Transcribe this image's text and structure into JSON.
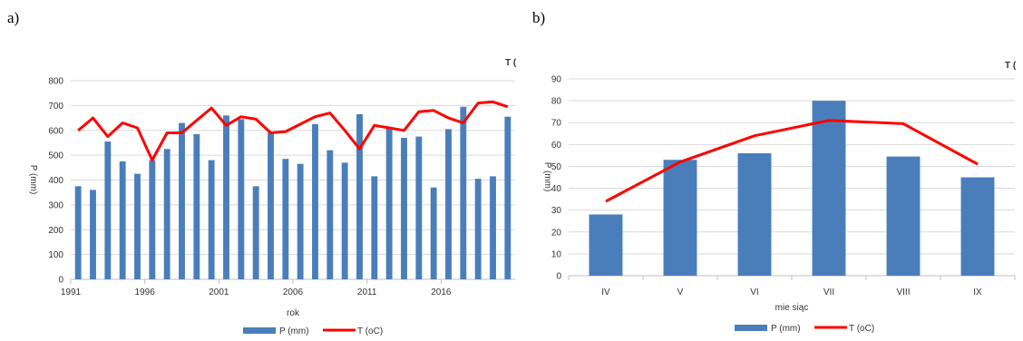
{
  "panels": {
    "a_label": "a)",
    "b_label": "b)"
  },
  "colors": {
    "bar": "#4a7ebb",
    "line": "#ff0000",
    "grid": "#d9d9d9",
    "axis": "#bfbfbf"
  },
  "chart_data": [
    {
      "type": "bar",
      "title": "",
      "xlabel": "rok",
      "ylabel": "P (mm)",
      "right_axis_label": "T (",
      "ylim": [
        0,
        800
      ],
      "yticks": [
        0,
        100,
        200,
        300,
        400,
        500,
        600,
        700,
        800
      ],
      "x_tick_labels": [
        "1991",
        "1996",
        "2001",
        "2006",
        "2011",
        "2016"
      ],
      "x_tick_positions": [
        1991,
        1996,
        2001,
        2006,
        2011,
        2016
      ],
      "categories": [
        1991,
        1992,
        1993,
        1994,
        1995,
        1996,
        1997,
        1998,
        1999,
        2000,
        2001,
        2002,
        2003,
        2004,
        2005,
        2006,
        2007,
        2008,
        2009,
        2010,
        2011,
        2012,
        2013,
        2014,
        2015,
        2016,
        2017,
        2018,
        2019,
        2020
      ],
      "legend": [
        "P (mm)",
        "T (oC)"
      ],
      "grid": true,
      "legend_position": "bottom",
      "series": [
        {
          "name": "P (mm)",
          "kind": "bar",
          "values": [
            375,
            360,
            555,
            475,
            425,
            480,
            525,
            630,
            585,
            480,
            660,
            645,
            375,
            590,
            485,
            465,
            625,
            520,
            470,
            665,
            415,
            610,
            570,
            575,
            370,
            605,
            695,
            405,
            415,
            655
          ]
        },
        {
          "name": "T (oC)",
          "kind": "line",
          "values": [
            600,
            650,
            575,
            630,
            610,
            480,
            590,
            590,
            640,
            690,
            620,
            655,
            645,
            590,
            595,
            625,
            655,
            670,
            600,
            525,
            620,
            610,
            600,
            675,
            680,
            650,
            630,
            710,
            715,
            695
          ]
        }
      ]
    },
    {
      "type": "bar",
      "title": "",
      "xlabel": "mie siąc",
      "ylabel": "P (mm)",
      "right_axis_label": "T (",
      "ylim": [
        0,
        90
      ],
      "yticks": [
        0,
        10,
        20,
        30,
        40,
        50,
        60,
        70,
        80,
        90
      ],
      "categories": [
        "IV",
        "V",
        "VI",
        "VII",
        "VIII",
        "IX"
      ],
      "legend": [
        "P (mm)",
        "T (oC)"
      ],
      "grid": true,
      "legend_position": "bottom",
      "series": [
        {
          "name": "P (mm)",
          "kind": "bar",
          "values": [
            28,
            53,
            56,
            80,
            54.5,
            45
          ]
        },
        {
          "name": "T (oC)",
          "kind": "line",
          "values": [
            34,
            52,
            64,
            71,
            69.5,
            51
          ]
        }
      ]
    }
  ]
}
